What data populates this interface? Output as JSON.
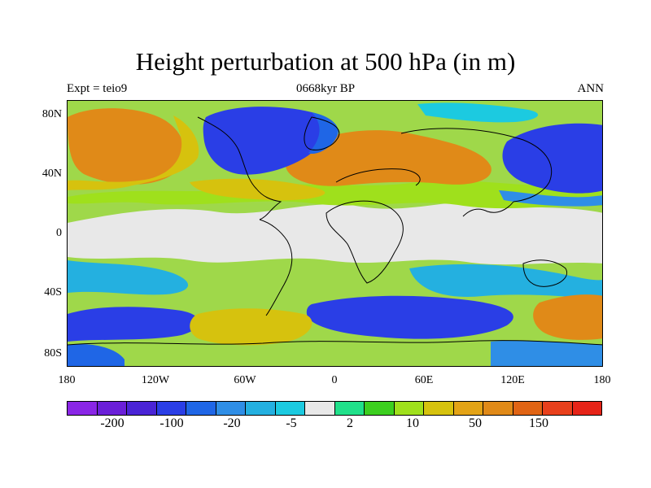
{
  "title": "Height perturbation at 500 hPa (in m)",
  "subtitle_left": "Expt = teio9",
  "subtitle_center": "0668kyr BP",
  "subtitle_right": "ANN",
  "y_ticks": [
    "80N",
    "40N",
    "0",
    "40S",
    "80S"
  ],
  "x_ticks": [
    "180",
    "120W",
    "60W",
    "0",
    "60E",
    "120E",
    "180"
  ],
  "colorbar": {
    "colors": [
      "#8a26e6",
      "#6a1fd8",
      "#4a24d6",
      "#2a3ee6",
      "#1f66e6",
      "#2f8ee6",
      "#24b0e0",
      "#1ccae0",
      "#e8e8e8",
      "#20e08a",
      "#3ccf1f",
      "#9fe01c",
      "#d6c20e",
      "#e3a316",
      "#e08a18",
      "#e06414",
      "#e8401c",
      "#e62418"
    ],
    "labels": [
      "-200",
      "-100",
      "-20",
      "-5",
      "2",
      "10",
      "50",
      "150"
    ]
  },
  "map_regions": [
    {
      "name": "field-background",
      "color": "#9fd84a"
    },
    {
      "name": "tropical-neutral-band",
      "color": "#e8e8e8"
    },
    {
      "name": "north-pacific-high",
      "color": "#e08a18"
    },
    {
      "name": "north-atlantic-europe-high",
      "color": "#e08a18"
    },
    {
      "name": "north-america-low",
      "color": "#2a3ee6"
    },
    {
      "name": "east-asia-low",
      "color": "#2a3ee6"
    },
    {
      "name": "southern-ocean-low-pacific",
      "color": "#2a3ee6"
    },
    {
      "name": "southern-ocean-low-indian",
      "color": "#2a3ee6"
    },
    {
      "name": "antarctic-high-atlantic",
      "color": "#d6c20e"
    },
    {
      "name": "antarctic-high-pacific",
      "color": "#e08a18"
    },
    {
      "name": "south-pacific-mid-band",
      "color": "#24b0e0"
    },
    {
      "name": "indian-ocean-mid-band",
      "color": "#24b0e0"
    }
  ]
}
